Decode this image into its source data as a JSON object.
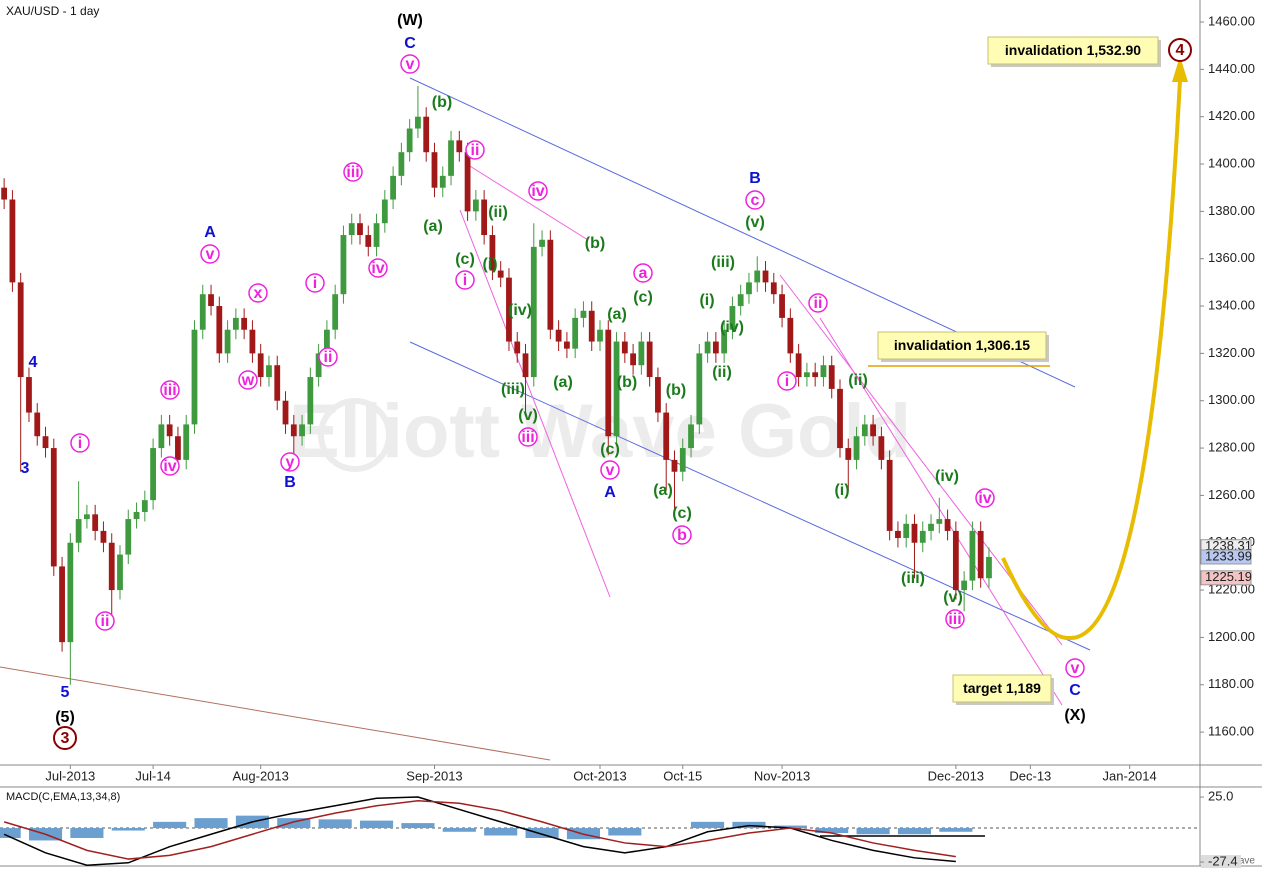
{
  "header": "XAU/USD - 1 day",
  "chart_data": {
    "type": "candlestick",
    "ohlc": [
      [
        1390,
        1394,
        1381,
        1385
      ],
      [
        1385,
        1389,
        1346,
        1350
      ],
      [
        1350,
        1354,
        1270,
        1310
      ],
      [
        1310,
        1314,
        1291,
        1295
      ],
      [
        1295,
        1299,
        1281,
        1285
      ],
      [
        1285,
        1289,
        1276,
        1280
      ],
      [
        1280,
        1284,
        1226,
        1230
      ],
      [
        1230,
        1234,
        1194,
        1198
      ],
      [
        1198,
        1244,
        1180,
        1240
      ],
      [
        1240,
        1266,
        1236,
        1250
      ],
      [
        1250,
        1256,
        1246,
        1252
      ],
      [
        1252,
        1256,
        1241,
        1245
      ],
      [
        1245,
        1249,
        1236,
        1240
      ],
      [
        1240,
        1244,
        1209,
        1220
      ],
      [
        1220,
        1239,
        1216,
        1235
      ],
      [
        1235,
        1254,
        1231,
        1250
      ],
      [
        1250,
        1257,
        1246,
        1253
      ],
      [
        1253,
        1262,
        1249,
        1258
      ],
      [
        1258,
        1284,
        1254,
        1280
      ],
      [
        1280,
        1294,
        1276,
        1290
      ],
      [
        1290,
        1294,
        1281,
        1285
      ],
      [
        1285,
        1289,
        1271,
        1275
      ],
      [
        1275,
        1294,
        1271,
        1290
      ],
      [
        1290,
        1334,
        1286,
        1330
      ],
      [
        1330,
        1349,
        1326,
        1345
      ],
      [
        1345,
        1349,
        1336,
        1340
      ],
      [
        1340,
        1344,
        1316,
        1320
      ],
      [
        1320,
        1334,
        1316,
        1330
      ],
      [
        1330,
        1339,
        1326,
        1335
      ],
      [
        1335,
        1339,
        1326,
        1330
      ],
      [
        1330,
        1334,
        1316,
        1320
      ],
      [
        1320,
        1324,
        1306,
        1310
      ],
      [
        1310,
        1319,
        1306,
        1315
      ],
      [
        1315,
        1319,
        1296,
        1300
      ],
      [
        1300,
        1304,
        1286,
        1290
      ],
      [
        1290,
        1294,
        1273,
        1285
      ],
      [
        1285,
        1294,
        1281,
        1290
      ],
      [
        1290,
        1314,
        1286,
        1310
      ],
      [
        1310,
        1324,
        1306,
        1320
      ],
      [
        1320,
        1334,
        1316,
        1330
      ],
      [
        1330,
        1349,
        1326,
        1345
      ],
      [
        1345,
        1374,
        1341,
        1370
      ],
      [
        1370,
        1379,
        1366,
        1375
      ],
      [
        1375,
        1379,
        1366,
        1370
      ],
      [
        1370,
        1374,
        1361,
        1365
      ],
      [
        1365,
        1379,
        1361,
        1375
      ],
      [
        1375,
        1389,
        1371,
        1385
      ],
      [
        1385,
        1399,
        1381,
        1395
      ],
      [
        1395,
        1409,
        1391,
        1405
      ],
      [
        1405,
        1419,
        1401,
        1415
      ],
      [
        1415,
        1433,
        1411,
        1420
      ],
      [
        1420,
        1424,
        1401,
        1405
      ],
      [
        1405,
        1409,
        1386,
        1390
      ],
      [
        1390,
        1399,
        1386,
        1395
      ],
      [
        1395,
        1414,
        1391,
        1410
      ],
      [
        1410,
        1414,
        1401,
        1405
      ],
      [
        1405,
        1409,
        1376,
        1380
      ],
      [
        1380,
        1389,
        1376,
        1385
      ],
      [
        1385,
        1389,
        1366,
        1370
      ],
      [
        1370,
        1374,
        1351,
        1355
      ],
      [
        1355,
        1359,
        1348,
        1352
      ],
      [
        1352,
        1356,
        1321,
        1325
      ],
      [
        1325,
        1329,
        1316,
        1320
      ],
      [
        1320,
        1324,
        1295,
        1310
      ],
      [
        1310,
        1375,
        1306,
        1365
      ],
      [
        1365,
        1372,
        1361,
        1368
      ],
      [
        1368,
        1372,
        1326,
        1330
      ],
      [
        1330,
        1334,
        1321,
        1325
      ],
      [
        1325,
        1329,
        1318,
        1322
      ],
      [
        1322,
        1339,
        1318,
        1335
      ],
      [
        1335,
        1342,
        1331,
        1338
      ],
      [
        1338,
        1342,
        1321,
        1325
      ],
      [
        1325,
        1334,
        1321,
        1330
      ],
      [
        1330,
        1334,
        1277,
        1285
      ],
      [
        1285,
        1329,
        1281,
        1325
      ],
      [
        1325,
        1329,
        1316,
        1320
      ],
      [
        1320,
        1324,
        1311,
        1315
      ],
      [
        1315,
        1329,
        1311,
        1325
      ],
      [
        1325,
        1329,
        1306,
        1310
      ],
      [
        1310,
        1314,
        1291,
        1295
      ],
      [
        1295,
        1299,
        1262,
        1275
      ],
      [
        1275,
        1279,
        1251,
        1270
      ],
      [
        1270,
        1284,
        1266,
        1280
      ],
      [
        1280,
        1294,
        1276,
        1290
      ],
      [
        1290,
        1324,
        1286,
        1320
      ],
      [
        1320,
        1329,
        1316,
        1325
      ],
      [
        1325,
        1329,
        1316,
        1320
      ],
      [
        1320,
        1334,
        1316,
        1330
      ],
      [
        1330,
        1344,
        1326,
        1340
      ],
      [
        1340,
        1349,
        1336,
        1345
      ],
      [
        1345,
        1354,
        1341,
        1350
      ],
      [
        1350,
        1361,
        1346,
        1355
      ],
      [
        1355,
        1359,
        1346,
        1350
      ],
      [
        1350,
        1354,
        1341,
        1345
      ],
      [
        1345,
        1349,
        1331,
        1335
      ],
      [
        1335,
        1339,
        1316,
        1320
      ],
      [
        1320,
        1324,
        1306,
        1310
      ],
      [
        1310,
        1316,
        1306,
        1312
      ],
      [
        1312,
        1316,
        1306,
        1310
      ],
      [
        1310,
        1319,
        1306,
        1315
      ],
      [
        1315,
        1319,
        1301,
        1305
      ],
      [
        1305,
        1309,
        1276,
        1280
      ],
      [
        1280,
        1284,
        1262,
        1275
      ],
      [
        1275,
        1289,
        1271,
        1285
      ],
      [
        1285,
        1294,
        1281,
        1290
      ],
      [
        1290,
        1294,
        1281,
        1285
      ],
      [
        1285,
        1289,
        1271,
        1275
      ],
      [
        1275,
        1279,
        1241,
        1245
      ],
      [
        1245,
        1249,
        1238,
        1242
      ],
      [
        1242,
        1252,
        1238,
        1248
      ],
      [
        1248,
        1252,
        1225,
        1240
      ],
      [
        1240,
        1249,
        1236,
        1245
      ],
      [
        1245,
        1252,
        1241,
        1248
      ],
      [
        1248,
        1259,
        1244,
        1250
      ],
      [
        1250,
        1254,
        1241,
        1245
      ],
      [
        1245,
        1249,
        1216,
        1220
      ],
      [
        1220,
        1228,
        1211,
        1224
      ],
      [
        1224,
        1249,
        1220,
        1245
      ],
      [
        1245,
        1249,
        1221,
        1225
      ],
      [
        1225,
        1238,
        1221,
        1234
      ]
    ],
    "up_color": "#3f9a3f",
    "down_color": "#a01818",
    "xlim": [
      -0.5,
      144.5
    ],
    "xticks": [
      {
        "value": 8,
        "label": "Jul-2013"
      },
      {
        "value": 18,
        "label": "Jul-14"
      },
      {
        "value": 31,
        "label": "Aug-2013"
      },
      {
        "value": 52,
        "label": "Sep-2013"
      },
      {
        "value": 72,
        "label": "Oct-2013"
      },
      {
        "value": 82,
        "label": "Oct-15"
      },
      {
        "value": 94,
        "label": "Nov-2013"
      },
      {
        "value": 115,
        "label": "Dec-2013"
      },
      {
        "value": 124,
        "label": "Dec-13"
      },
      {
        "value": 136,
        "label": "Jan-2014"
      }
    ],
    "ylim": [
      1146.1,
      1469.3
    ],
    "yticks": [
      {
        "value": 1160,
        "label": "1160.00"
      },
      {
        "value": 1180,
        "label": "1180.00"
      },
      {
        "value": 1200,
        "label": "1200.00"
      },
      {
        "value": 1220,
        "label": "1220.00"
      },
      {
        "value": 1240,
        "label": "1240.00"
      },
      {
        "value": 1260,
        "label": "1260.00"
      },
      {
        "value": 1280,
        "label": "1280.00"
      },
      {
        "value": 1300,
        "label": "1300.00"
      },
      {
        "value": 1320,
        "label": "1320.00"
      },
      {
        "value": 1340,
        "label": "1340.00"
      },
      {
        "value": 1360,
        "label": "1360.00"
      },
      {
        "value": 1380,
        "label": "1380.00"
      },
      {
        "value": 1400,
        "label": "1400.00"
      },
      {
        "value": 1420,
        "label": "1420.00"
      },
      {
        "value": 1440,
        "label": "1440.00"
      },
      {
        "value": 1460,
        "label": "1460.00"
      }
    ],
    "price_markers": [
      1238.31,
      1233.99,
      1225.19
    ],
    "price_marker_colors": [
      "#eeeeee",
      "#b8c8f0",
      "#f4c4c4"
    ],
    "annotations": {
      "black": [
        "(W)",
        "(5)",
        "(X)"
      ],
      "blue": [
        "C",
        "4",
        "3",
        "5",
        "A",
        "B",
        "B",
        "A",
        "C"
      ],
      "magenta": [
        "v",
        "iii",
        "iv",
        "i",
        "ii",
        "x",
        "w",
        "y",
        "v",
        "iii",
        "iv",
        "i",
        "ii",
        "ii",
        "iv",
        "i",
        "iii",
        "v",
        "a",
        "b",
        "c",
        "ii",
        "i",
        "iv",
        "iii",
        "v"
      ],
      "maroon": [
        "3",
        "4"
      ],
      "green": [
        "(b)",
        "(a)",
        "(ii)",
        "(c)",
        "(i)",
        "(iv)",
        "(iii)",
        "(v)",
        "(a)",
        "(b)",
        "(c)",
        "(a)",
        "(b)",
        "(c)",
        "(b)",
        "(a)",
        "(c)",
        "(v)",
        "(iii)",
        "(i)",
        "(iv)",
        "(ii)",
        "(ii)",
        "(i)",
        "(iv)",
        "(iii)",
        "(v)"
      ]
    },
    "callouts": [
      "invalidation 1,532.90",
      "invalidation 1,306.15",
      "target 1,189"
    ],
    "watermark": "Elliott Wave Gold",
    "macd": {
      "title": "MACD(C,EMA,13,34,8)",
      "x": [
        0,
        5,
        10,
        15,
        20,
        25,
        30,
        35,
        40,
        45,
        50,
        55,
        60,
        65,
        70,
        75,
        80,
        85,
        90,
        95,
        100,
        105,
        110,
        115
      ],
      "series": [
        {
          "color": "#000000",
          "values": [
            -5,
            -20,
            -30,
            -28,
            -15,
            -5,
            5,
            12,
            18,
            24,
            25,
            15,
            5,
            -5,
            -15,
            -20,
            -15,
            -3,
            2,
            0,
            -10,
            -18,
            -24,
            -27
          ]
        },
        {
          "color": "#a02020",
          "values": [
            5,
            -5,
            -18,
            -25,
            -22,
            -15,
            -5,
            5,
            12,
            18,
            22,
            20,
            14,
            5,
            -5,
            -12,
            -15,
            -10,
            -4,
            0,
            -4,
            -12,
            -18,
            -23
          ]
        }
      ],
      "histogram": [
        -8,
        -10,
        -8,
        -2,
        5,
        8,
        10,
        8,
        7,
        6,
        4,
        -3,
        -6,
        -8,
        -9,
        -6,
        0,
        5,
        5,
        2,
        -4,
        -5,
        -5,
        -3
      ],
      "hist_color": "#6a9fd0",
      "ylim": [
        -30.6,
        32.3
      ],
      "yticks": [
        {
          "value": 25,
          "label": "25.0"
        },
        -27.4
      ]
    }
  },
  "footer": "motivewave"
}
